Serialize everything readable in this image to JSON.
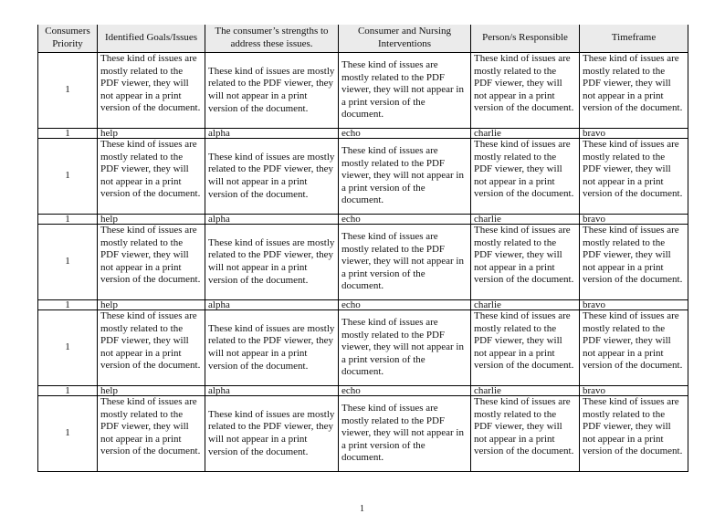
{
  "table": {
    "headers": [
      "Consumers Priority",
      "Identified Goals/Issues",
      "The consumer’s strengths to address these issues.",
      "Consumer and Nursing Interventions",
      "Person/s Responsible",
      "Timeframe"
    ],
    "rows": [
      {
        "type": "long",
        "cells": [
          "1",
          "These kind of issues are mostly related to the PDF viewer, they will not appear in a print version of the document.",
          "These kind of issues are mostly related to the PDF viewer, they will not appear in a print version of the document.",
          "These kind of issues are mostly related to the PDF viewer, they will not appear in a print version of the document.",
          "These kind of issues are mostly related to the PDF viewer, they will not appear in a print version of the document.",
          "These kind of issues are mostly related to the PDF viewer, they will not appear in a print version of the document."
        ]
      },
      {
        "type": "short",
        "cells": [
          "1",
          "help",
          "alpha",
          "echo",
          "charlie",
          "bravo"
        ]
      },
      {
        "type": "long",
        "cells": [
          "1",
          "These kind of issues are mostly related to the PDF viewer, they will not appear in a print version of the document.",
          "These kind of issues are mostly related to the PDF viewer, they will not appear in a print version of the document.",
          "These kind of issues are mostly related to the PDF viewer, they will not appear in a print version of the document.",
          "These kind of issues are mostly related to the PDF viewer, they will not appear in a print version of the document.",
          "These kind of issues are mostly related to the PDF viewer, they will not appear in a print version of the document."
        ]
      },
      {
        "type": "short",
        "cells": [
          "1",
          "help",
          "alpha",
          "echo",
          "charlie",
          "bravo"
        ]
      },
      {
        "type": "long",
        "cells": [
          "1",
          "These kind of issues are mostly related to the PDF viewer, they will not appear in a print version of the document.",
          "These kind of issues are mostly related to the PDF viewer, they will not appear in a print version of the document.",
          "These kind of issues are mostly related to the PDF viewer, they will not appear in a print version of the document.",
          "These kind of issues are mostly related to the PDF viewer, they will not appear in a print version of the document.",
          "These kind of issues are mostly related to the PDF viewer, they will not appear in a print version of the document."
        ]
      },
      {
        "type": "short",
        "cells": [
          "1",
          "help",
          "alpha",
          "echo",
          "charlie",
          "bravo"
        ]
      },
      {
        "type": "long",
        "cells": [
          "1",
          "These kind of issues are mostly related to the PDF viewer, they will not appear in a print version of the document.",
          "These kind of issues are mostly related to the PDF viewer, they will not appear in a print version of the document.",
          "These kind of issues are mostly related to the PDF viewer, they will not appear in a print version of the document.",
          "These kind of issues are mostly related to the PDF viewer, they will not appear in a print version of the document.",
          "These kind of issues are mostly related to the PDF viewer, they will not appear in a print version of the document."
        ]
      },
      {
        "type": "short",
        "cells": [
          "1",
          "help",
          "alpha",
          "echo",
          "charlie",
          "bravo"
        ]
      },
      {
        "type": "long",
        "cells": [
          "1",
          "These kind of issues are mostly related to the PDF viewer, they will not appear in a print version of the document.",
          "These kind of issues are mostly related to the PDF viewer, they will not appear in a print version of the document.",
          "These kind of issues are mostly related to the PDF viewer, they will not appear in a print version of the document.",
          "These kind of issues are mostly related to the PDF viewer, they will not appear in a print version of the document.",
          "These kind of issues are mostly related to the PDF viewer, they will not appear in a print version of the document."
        ]
      }
    ]
  },
  "page_number": "1",
  "colors": {
    "header_bg": "#ebebeb",
    "border": "#000000"
  }
}
